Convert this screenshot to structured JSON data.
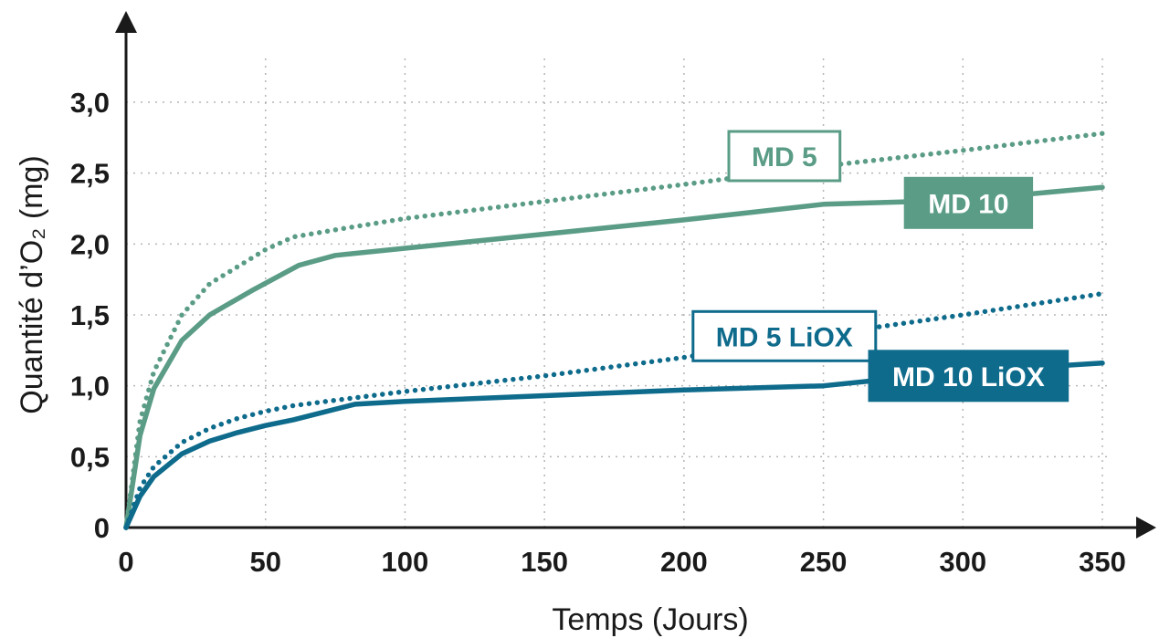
{
  "chart_data": {
    "type": "line",
    "title": "",
    "xlabel": "Temps (Jours)",
    "ylabel": "Quantité d’O₂ (mg)",
    "xlim": [
      0,
      350
    ],
    "ylim": [
      0,
      3.0
    ],
    "grid": true,
    "x_ticks": [
      0,
      50,
      100,
      150,
      200,
      250,
      300,
      350
    ],
    "x_tick_labels": [
      "0",
      "50",
      "100",
      "150",
      "200",
      "250",
      "300",
      "350"
    ],
    "y_ticks": [
      0,
      0.5,
      1.0,
      1.5,
      2.0,
      2.5,
      3.0
    ],
    "y_tick_labels": [
      "0",
      "0,5",
      "1,0",
      "1,5",
      "2,0",
      "2,5",
      "3,0"
    ],
    "series": [
      {
        "name": "MD 5",
        "color": "#5a9c86",
        "style": "dotted",
        "label_style": "outline",
        "x": [
          0,
          5,
          10,
          20,
          30,
          40,
          50,
          60,
          75,
          100,
          150,
          200,
          250,
          300,
          350
        ],
        "y": [
          0,
          0.75,
          1.1,
          1.5,
          1.72,
          1.84,
          1.96,
          2.05,
          2.1,
          2.18,
          2.3,
          2.42,
          2.55,
          2.66,
          2.78
        ]
      },
      {
        "name": "MD 10",
        "color": "#5a9c86",
        "style": "solid",
        "label_style": "filled",
        "x": [
          0,
          5,
          10,
          20,
          30,
          45,
          62,
          75,
          100,
          150,
          200,
          250,
          300,
          350
        ],
        "y": [
          0,
          0.65,
          0.98,
          1.32,
          1.5,
          1.67,
          1.85,
          1.92,
          1.97,
          2.07,
          2.17,
          2.28,
          2.31,
          2.4
        ]
      },
      {
        "name": "MD 5 LiOX",
        "color": "#0e6b8c",
        "style": "dotted",
        "label_style": "outline",
        "x": [
          0,
          5,
          10,
          20,
          30,
          40,
          50,
          60,
          80,
          100,
          150,
          200,
          250,
          300,
          350
        ],
        "y": [
          0,
          0.28,
          0.43,
          0.6,
          0.7,
          0.77,
          0.82,
          0.86,
          0.91,
          0.96,
          1.07,
          1.2,
          1.36,
          1.5,
          1.65
        ]
      },
      {
        "name": "MD 10 LiOX",
        "color": "#0e6b8c",
        "style": "solid",
        "label_style": "filled",
        "x": [
          0,
          5,
          10,
          20,
          30,
          40,
          50,
          60,
          82,
          100,
          150,
          200,
          250,
          300,
          350
        ],
        "y": [
          0,
          0.22,
          0.36,
          0.52,
          0.61,
          0.67,
          0.72,
          0.76,
          0.87,
          0.89,
          0.93,
          0.97,
          1.0,
          1.1,
          1.16
        ]
      }
    ],
    "series_label_anchors": [
      {
        "series": "MD 5",
        "x": 236,
        "y": 2.62
      },
      {
        "series": "MD 10",
        "x": 302,
        "y": 2.29
      },
      {
        "series": "MD 5 LiOX",
        "x": 236,
        "y": 1.35
      },
      {
        "series": "MD 10 LiOX",
        "x": 302,
        "y": 1.07
      }
    ]
  }
}
